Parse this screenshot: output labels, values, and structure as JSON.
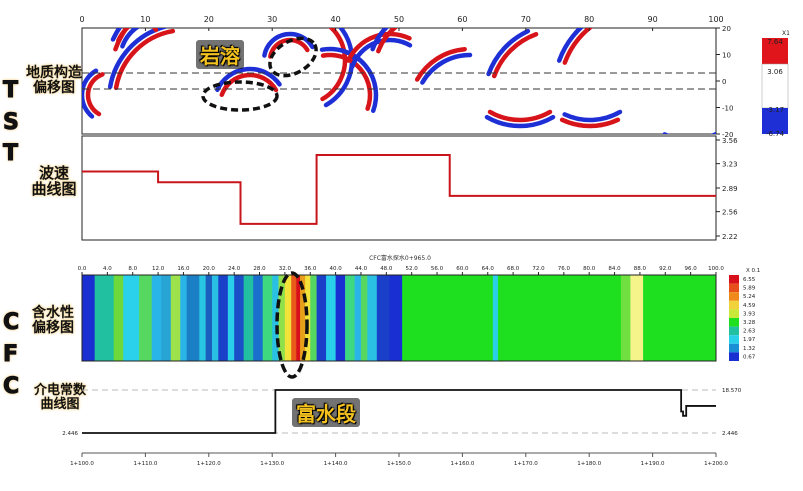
{
  "side_labels": {
    "tst": [
      "T",
      "S",
      "T"
    ],
    "cfc": [
      "C",
      "F",
      "C"
    ]
  },
  "panel_labels": {
    "geo": [
      "地质构造",
      "偏移图"
    ],
    "vel": [
      "波速",
      "曲线图"
    ],
    "water": [
      "含水性",
      "偏移图"
    ],
    "diel": [
      "介电常数",
      "曲线图"
    ]
  },
  "annotations": {
    "karst": "岩溶",
    "water_rich": "富水段"
  },
  "chart_data": [
    {
      "type": "heatmap",
      "name": "TST geological structure migration image",
      "x_ticks": [
        "0",
        "10",
        "20",
        "30",
        "40",
        "50",
        "60",
        "70",
        "80",
        "90",
        "100"
      ],
      "y_ticks": [
        "20",
        "10",
        "0",
        "-10",
        "-20"
      ],
      "xlim": [
        0,
        100
      ],
      "ylim": [
        -20,
        20
      ],
      "dashed_lines_y": [
        3,
        -3
      ],
      "colorbar": {
        "labels": [
          "7.64",
          "3.06",
          "-3.17",
          "-6.74"
        ],
        "unit": "X1",
        "colors": [
          "#e0141b",
          "#ffffff",
          "#1f2fd6"
        ]
      }
    },
    {
      "type": "line",
      "name": "TST wave velocity curve",
      "ylim": [
        2.22,
        3.56
      ],
      "y_ticks": [
        "3.56",
        "3.23",
        "2.89",
        "2.56",
        "2.22"
      ],
      "step_x": [
        0,
        12,
        12,
        25,
        25,
        37,
        37,
        58,
        58,
        100
      ],
      "step_y": [
        3.12,
        3.12,
        2.97,
        2.97,
        2.39,
        2.39,
        3.35,
        3.35,
        2.78,
        2.78
      ],
      "color": "#c8141b"
    },
    {
      "type": "heatmap",
      "name": "CFC water content migration image",
      "title": "CFC富水探水0+965.0",
      "x_ticks": [
        "0.0",
        "4.0",
        "8.0",
        "12.0",
        "16.0",
        "20.0",
        "24.0",
        "28.0",
        "32.0",
        "36.0",
        "40.0",
        "44.0",
        "48.0",
        "52.0",
        "56.0",
        "60.0",
        "64.0",
        "68.0",
        "72.0",
        "76.0",
        "80.0",
        "84.0",
        "88.0",
        "92.0",
        "96.0",
        "100.0"
      ],
      "xlim": [
        0,
        100
      ],
      "colorbar": {
        "unit": "X 0.1",
        "labels": [
          "6.55",
          "5.89",
          "5.24",
          "4.59",
          "3.93",
          "3.28",
          "2.63",
          "1.97",
          "1.32",
          "0.67"
        ]
      },
      "bands": [
        {
          "x0": 0,
          "x1": 2,
          "c": "#1a2fd2"
        },
        {
          "x0": 2,
          "x1": 5,
          "c": "#21c0a0"
        },
        {
          "x0": 5,
          "x1": 6.5,
          "c": "#6fd83a"
        },
        {
          "x0": 6.5,
          "x1": 9,
          "c": "#2bd0ea"
        },
        {
          "x0": 9,
          "x1": 11,
          "c": "#56d860"
        },
        {
          "x0": 11,
          "x1": 12.5,
          "c": "#2ab5e8"
        },
        {
          "x0": 12.5,
          "x1": 14,
          "c": "#27a4d4"
        },
        {
          "x0": 14,
          "x1": 15.5,
          "c": "#9ee24b"
        },
        {
          "x0": 15.5,
          "x1": 16.5,
          "c": "#2ab5e8"
        },
        {
          "x0": 16.5,
          "x1": 18.5,
          "c": "#1a7fc4"
        },
        {
          "x0": 18.5,
          "x1": 19.5,
          "c": "#29c6e4"
        },
        {
          "x0": 19.5,
          "x1": 20.5,
          "c": "#1a5fbe"
        },
        {
          "x0": 20.5,
          "x1": 21.5,
          "c": "#2ac0e4"
        },
        {
          "x0": 21.5,
          "x1": 23,
          "c": "#1a3fc8"
        },
        {
          "x0": 23,
          "x1": 24,
          "c": "#2ad0ea"
        },
        {
          "x0": 24,
          "x1": 25.5,
          "c": "#1a4fc8"
        },
        {
          "x0": 25.5,
          "x1": 27,
          "c": "#21c0a0"
        },
        {
          "x0": 27,
          "x1": 28.5,
          "c": "#1a6fce"
        },
        {
          "x0": 28.5,
          "x1": 30,
          "c": "#3dd880"
        },
        {
          "x0": 30,
          "x1": 31,
          "c": "#2ac0e4"
        },
        {
          "x0": 31,
          "x1": 32,
          "c": "#8fe04a"
        },
        {
          "x0": 32,
          "x1": 33,
          "c": "#f2e23a"
        },
        {
          "x0": 33,
          "x1": 33.8,
          "c": "#e85a1b"
        },
        {
          "x0": 33.8,
          "x1": 34.4,
          "c": "#d8101b"
        },
        {
          "x0": 34.4,
          "x1": 35.2,
          "c": "#e8a01b"
        },
        {
          "x0": 35.2,
          "x1": 36,
          "c": "#f2e23a"
        },
        {
          "x0": 36,
          "x1": 37,
          "c": "#56d860"
        },
        {
          "x0": 37,
          "x1": 38.5,
          "c": "#1a3fc8"
        },
        {
          "x0": 38.5,
          "x1": 40,
          "c": "#2ad0ea"
        },
        {
          "x0": 40,
          "x1": 41.5,
          "c": "#1a2fd2"
        },
        {
          "x0": 41.5,
          "x1": 43,
          "c": "#3dd880"
        },
        {
          "x0": 43,
          "x1": 44,
          "c": "#2ab5e8"
        },
        {
          "x0": 44,
          "x1": 45,
          "c": "#56d860"
        },
        {
          "x0": 45,
          "x1": 46.5,
          "c": "#2ac0e4"
        },
        {
          "x0": 46.5,
          "x1": 48.5,
          "c": "#1a3fc8"
        },
        {
          "x0": 48.5,
          "x1": 50.5,
          "c": "#1a2fd2"
        },
        {
          "x0": 50.5,
          "x1": 64.8,
          "c": "#1fe01f"
        },
        {
          "x0": 64.8,
          "x1": 65.6,
          "c": "#2ad0ea"
        },
        {
          "x0": 65.6,
          "x1": 85,
          "c": "#1fe01f"
        },
        {
          "x0": 85,
          "x1": 86.5,
          "c": "#6fe040"
        },
        {
          "x0": 86.5,
          "x1": 88.5,
          "c": "#f4f48a"
        },
        {
          "x0": 88.5,
          "x1": 100,
          "c": "#1fe01f"
        }
      ]
    },
    {
      "type": "line",
      "name": "CFC dielectric constant curve",
      "y_ticks": [
        "18.570",
        "2.446"
      ],
      "ylim": [
        2.446,
        18.57
      ],
      "x_ticks": [
        "1+100.0",
        "1+110.0",
        "1+120.0",
        "1+130.0",
        "1+140.0",
        "1+150.0",
        "1+160.0",
        "1+170.0",
        "1+180.0",
        "1+190.0",
        "1+200.0"
      ],
      "step_x": [
        0,
        30.5,
        30.5,
        94.5,
        94.5,
        94.8,
        94.8,
        95.3,
        95.3,
        100
      ],
      "step_y": [
        2.446,
        2.446,
        18.57,
        18.57,
        10.5,
        10.5,
        8.9,
        8.9,
        12.6,
        12.6
      ],
      "color": "#111111"
    }
  ]
}
